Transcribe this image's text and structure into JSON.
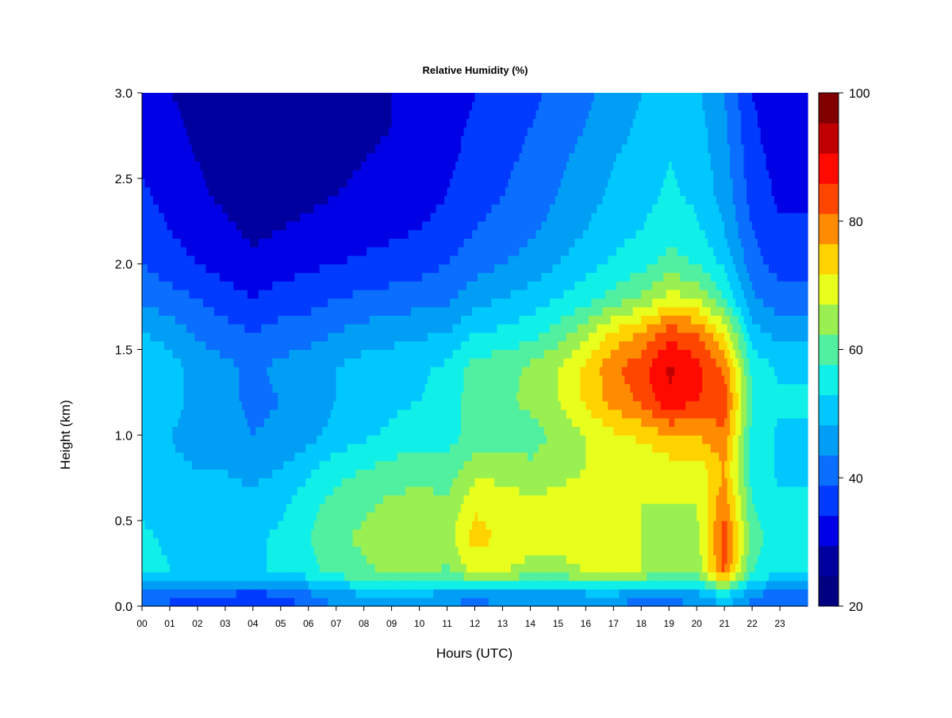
{
  "chart_data": {
    "type": "heatmap",
    "title": "Relative Humidity (%)",
    "xlabel": "Hours (UTC)",
    "ylabel": "Height (km)",
    "xlim": [
      0,
      24
    ],
    "ylim": [
      0.0,
      3.0
    ],
    "x_ticks": [
      "00",
      "01",
      "02",
      "03",
      "04",
      "05",
      "06",
      "07",
      "08",
      "09",
      "10",
      "11",
      "12",
      "13",
      "14",
      "15",
      "16",
      "17",
      "18",
      "19",
      "20",
      "21",
      "22",
      "23"
    ],
    "y_ticks": [
      "0.0",
      "0.5",
      "1.0",
      "1.5",
      "2.0",
      "2.5",
      "3.0"
    ],
    "colorbar": {
      "min": 20,
      "max": 100,
      "step": 5,
      "ticks": [
        "20",
        "40",
        "60",
        "80",
        "100"
      ],
      "colors": [
        "#000080",
        "#00009F",
        "#0000E6",
        "#003BFF",
        "#0A6EFF",
        "#009EF5",
        "#00C8FF",
        "#10F0E8",
        "#50F0A0",
        "#9AF050",
        "#E8FF1E",
        "#FFD300",
        "#FF8C00",
        "#FF4600",
        "#FF0A00",
        "#C00000",
        "#800000"
      ]
    },
    "height_levels_km": [
      0.05,
      0.2,
      0.4,
      0.6,
      0.8,
      1.0,
      1.2,
      1.4,
      1.6,
      1.8,
      2.0,
      2.2,
      2.4,
      2.6,
      2.8,
      3.0
    ],
    "hourly_rh_profiles": [
      {
        "hour": 0,
        "rh": [
          40,
          58,
          56,
          54,
          52,
          52,
          55,
          55,
          50,
          44,
          40,
          38,
          36,
          34,
          33,
          32
        ]
      },
      {
        "hour": 1,
        "rh": [
          40,
          55,
          54,
          52,
          51,
          50,
          52,
          52,
          48,
          42,
          37,
          35,
          33,
          32,
          31,
          30
        ]
      },
      {
        "hour": 2,
        "rh": [
          38,
          54,
          54,
          52,
          50,
          48,
          48,
          48,
          44,
          40,
          35,
          33,
          31,
          30,
          29,
          29
        ]
      },
      {
        "hour": 3,
        "rh": [
          38,
          54,
          53,
          52,
          50,
          47,
          46,
          46,
          42,
          37,
          33,
          31,
          29,
          28,
          27,
          27
        ]
      },
      {
        "hour": 4,
        "rh": [
          36,
          54,
          54,
          52,
          48,
          45,
          44,
          44,
          40,
          35,
          31,
          29,
          27,
          26,
          25,
          25
        ]
      },
      {
        "hour": 5,
        "rh": [
          38,
          56,
          56,
          54,
          50,
          46,
          45,
          46,
          42,
          37,
          33,
          30,
          28,
          27,
          26,
          26
        ]
      },
      {
        "hour": 6,
        "rh": [
          42,
          58,
          60,
          58,
          54,
          48,
          47,
          48,
          43,
          38,
          34,
          31,
          29,
          28,
          27,
          27
        ]
      },
      {
        "hour": 7,
        "rh": [
          46,
          62,
          64,
          62,
          58,
          52,
          50,
          50,
          45,
          40,
          35,
          32,
          30,
          29,
          28,
          28
        ]
      },
      {
        "hour": 8,
        "rh": [
          48,
          64,
          66,
          64,
          60,
          54,
          52,
          52,
          47,
          41,
          36,
          33,
          31,
          30,
          29,
          29
        ]
      },
      {
        "hour": 9,
        "rh": [
          48,
          66,
          68,
          66,
          62,
          56,
          54,
          53,
          48,
          42,
          37,
          34,
          32,
          31,
          30,
          30
        ]
      },
      {
        "hour": 10,
        "rh": [
          48,
          67,
          70,
          67,
          63,
          57,
          55,
          54,
          49,
          43,
          38,
          35,
          33,
          32,
          31,
          31
        ]
      },
      {
        "hour": 11,
        "rh": [
          46,
          64,
          68,
          66,
          62,
          58,
          57,
          56,
          50,
          44,
          40,
          37,
          35,
          34,
          33,
          32
        ]
      },
      {
        "hour": 12,
        "rh": [
          44,
          72,
          77,
          74,
          68,
          62,
          63,
          62,
          55,
          48,
          43,
          40,
          38,
          37,
          36,
          35
        ]
      },
      {
        "hour": 13,
        "rh": [
          46,
          70,
          74,
          73,
          68,
          63,
          64,
          63,
          56,
          50,
          45,
          42,
          40,
          39,
          38,
          37
        ]
      },
      {
        "hour": 14,
        "rh": [
          46,
          68,
          72,
          71,
          66,
          63,
          66,
          66,
          58,
          52,
          47,
          44,
          42,
          41,
          40,
          39
        ]
      },
      {
        "hour": 15,
        "rh": [
          46,
          68,
          72,
          72,
          68,
          66,
          70,
          70,
          62,
          55,
          50,
          47,
          45,
          44,
          42,
          41
        ]
      },
      {
        "hour": 16,
        "rh": [
          46,
          70,
          73,
          73,
          70,
          70,
          76,
          76,
          68,
          58,
          53,
          50,
          48,
          47,
          45,
          44
        ]
      },
      {
        "hour": 17,
        "rh": [
          46,
          72,
          74,
          74,
          72,
          74,
          82,
          84,
          76,
          62,
          56,
          53,
          51,
          50,
          48,
          47
        ]
      },
      {
        "hour": 18,
        "rh": [
          44,
          70,
          70,
          70,
          70,
          76,
          86,
          88,
          80,
          66,
          58,
          55,
          53,
          52,
          51,
          50
        ]
      },
      {
        "hour": 19,
        "rh": [
          44,
          66,
          68,
          70,
          72,
          80,
          94,
          96,
          88,
          72,
          62,
          58,
          56,
          55,
          54,
          53
        ]
      },
      {
        "hour": 20,
        "rh": [
          46,
          66,
          68,
          70,
          72,
          80,
          90,
          92,
          85,
          70,
          60,
          56,
          54,
          53,
          52,
          51
        ]
      },
      {
        "hour": 21,
        "rh": [
          52,
          86,
          88,
          84,
          80,
          84,
          88,
          84,
          74,
          60,
          54,
          50,
          48,
          47,
          46,
          45
        ]
      },
      {
        "hour": 22,
        "rh": [
          44,
          60,
          62,
          60,
          58,
          58,
          60,
          58,
          52,
          46,
          42,
          40,
          38,
          37,
          36,
          35
        ]
      },
      {
        "hour": 23,
        "rh": [
          40,
          56,
          58,
          56,
          54,
          54,
          56,
          54,
          48,
          42,
          38,
          36,
          34,
          33,
          32,
          31
        ]
      }
    ]
  }
}
